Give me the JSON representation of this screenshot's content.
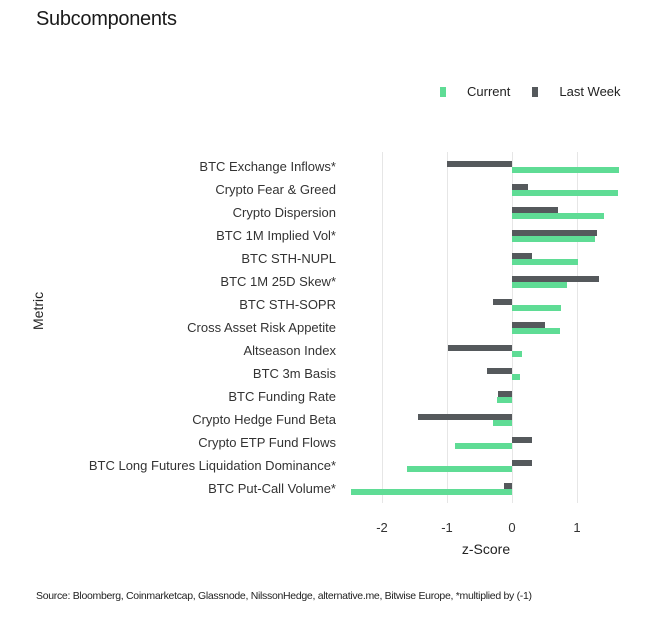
{
  "title": "Subcomponents",
  "legend": [
    {
      "label": "Current",
      "color": "#5fdc95"
    },
    {
      "label": "Last Week",
      "color": "#55595c"
    }
  ],
  "source": "Source: Bloomberg, Coinmarketcap, Glassnode, NilssonHedge, alternative.me, Bitwise Europe, *multiplied by (-1)",
  "chart_data": {
    "type": "bar",
    "orientation": "horizontal",
    "title": "Subcomponents",
    "xlabel": "z-Score",
    "ylabel": "Metric",
    "xlim": [
      -2.5,
      1.75
    ],
    "xticks": [
      -2,
      -1,
      0,
      1
    ],
    "grid": "vertical",
    "legend_position": "top-right",
    "categories": [
      "BTC Exchange Inflows*",
      "Crypto Fear & Greed",
      "Crypto Dispersion",
      "BTC 1M Implied Vol*",
      "BTC STH-NUPL",
      "BTC 1M 25D Skew*",
      "BTC STH-SOPR",
      "Cross Asset Risk Appetite",
      "Altseason Index",
      "BTC 3m Basis",
      "BTC Funding Rate",
      "Crypto Hedge Fund Beta",
      "Crypto ETP Fund Flows",
      "BTC Long Futures Liquidation Dominance*",
      "BTC Put-Call Volume*"
    ],
    "series": [
      {
        "name": "Last Week",
        "color": "#55595c",
        "values": [
          -1.0,
          0.25,
          0.7,
          1.3,
          0.3,
          1.34,
          -0.3,
          0.51,
          -0.98,
          -0.39,
          -0.21,
          -1.44,
          0.3,
          0.3,
          -0.12
        ]
      },
      {
        "name": "Current",
        "color": "#5fdc95",
        "values": [
          1.65,
          1.63,
          1.41,
          1.28,
          1.02,
          0.85,
          0.75,
          0.74,
          0.16,
          0.12,
          -0.23,
          -0.29,
          -0.87,
          -1.62,
          -2.47
        ]
      }
    ]
  }
}
